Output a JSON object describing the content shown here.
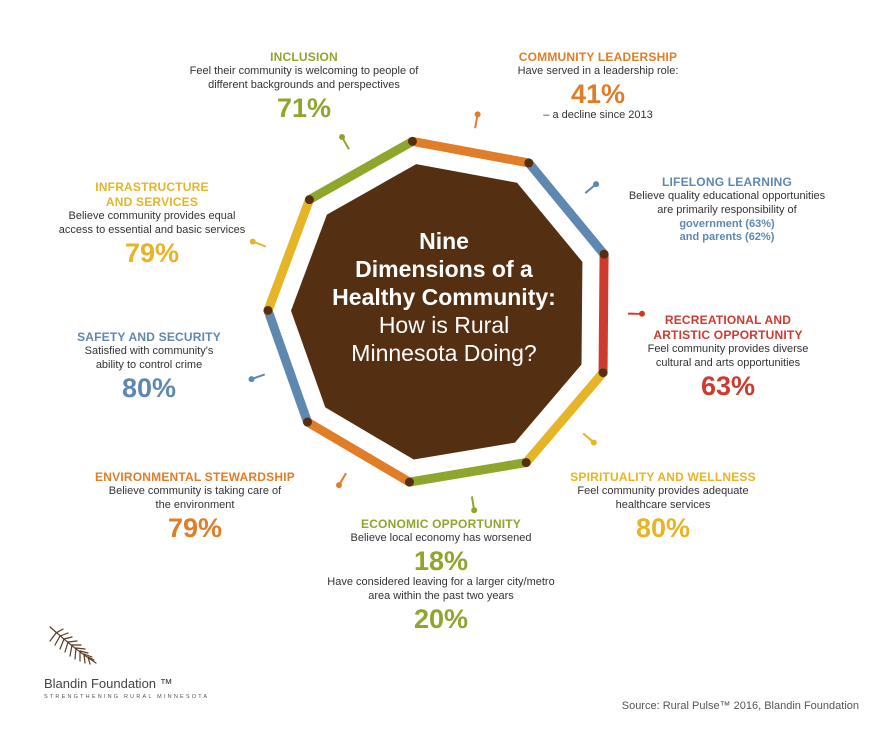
{
  "colors": {
    "green": "#8fa62c",
    "orange": "#e07d28",
    "blue": "#5f88b0",
    "red": "#cf3a2f",
    "yellow": "#e6b427",
    "center_fill": "#552f12"
  },
  "center": {
    "line1": "Nine",
    "line2": "Dimensions of a",
    "line3": "Healthy Community:",
    "line4": "How is Rural",
    "line5": "Minnesota Doing?"
  },
  "dimensions": [
    {
      "title": "INCLUSION",
      "desc1": "Feel their community is welcoming to people of",
      "desc2": "different backgrounds and perspectives",
      "pct": "71%",
      "color": "green"
    },
    {
      "title": "COMMUNITY LEADERSHIP",
      "desc1": "Have served in a leadership role:",
      "pct": "41%",
      "sub": "– a decline since 2013",
      "color": "orange"
    },
    {
      "title": "LIFELONG LEARNING",
      "desc1": "Believe quality educational opportunities",
      "desc2": "are primarily responsibility of",
      "hl1": "government (63%)",
      "hl2": "and parents (62%)",
      "color": "blue"
    },
    {
      "title1": "RECREATIONAL AND",
      "title2": "ARTISTIC OPPORTUNITY",
      "desc1": "Feel community provides diverse",
      "desc2": "cultural and arts opportunities",
      "pct": "63%",
      "color": "red"
    },
    {
      "title": "SPIRITUALITY AND WELLNESS",
      "desc1": "Feel community provides adequate",
      "desc2": "healthcare services",
      "pct": "80%",
      "color": "yellow"
    },
    {
      "title": "ECONOMIC OPPORTUNITY",
      "desc1": "Believe local economy has worsened",
      "pct": "18%",
      "desc2": "Have considered leaving for a larger city/metro",
      "desc3": "area within the past two years",
      "pct2": "20%",
      "color": "green"
    },
    {
      "title": "ENVIRONMENTAL STEWARDSHIP",
      "desc1": "Believe community is taking care of",
      "desc2": "the environment",
      "pct": "79%",
      "color": "orange"
    },
    {
      "title": "SAFETY AND SECURITY",
      "desc1": "Satisfied with community's",
      "desc2": "ability to control crime",
      "pct": "80%",
      "color": "blue"
    },
    {
      "title1": "INFRASTRUCTURE",
      "title2": "AND SERVICES",
      "desc1": "Believe community provides equal",
      "desc2": "access to essential and basic services",
      "pct": "79%",
      "color": "yellow"
    }
  ],
  "logo": {
    "name": "Blandin Foundation ™",
    "tagline": "STRENGTHENING RURAL MINNESOTA"
  },
  "source": "Source: Rural Pulse™ 2016, Blandin Foundation"
}
